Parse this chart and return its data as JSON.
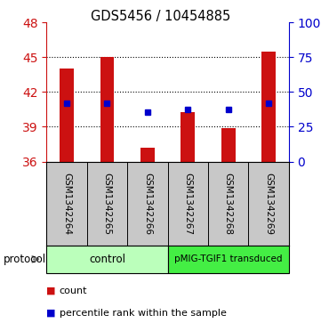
{
  "title": "GDS5456 / 10454885",
  "samples": [
    "GSM1342264",
    "GSM1342265",
    "GSM1342266",
    "GSM1342267",
    "GSM1342268",
    "GSM1342269"
  ],
  "bar_tops": [
    44.0,
    45.0,
    37.2,
    40.3,
    38.9,
    45.5
  ],
  "bar_bottom": 36,
  "blue_y": [
    41.0,
    41.0,
    40.3,
    40.5,
    40.5,
    41.0
  ],
  "ylim_left": [
    36,
    48
  ],
  "yticks_left": [
    36,
    39,
    42,
    45,
    48
  ],
  "ylim_right": [
    0,
    100
  ],
  "yticks_right": [
    0,
    25,
    50,
    75,
    100
  ],
  "yticklabels_right": [
    "0",
    "25",
    "50",
    "75",
    "100%"
  ],
  "bar_color": "#cc1111",
  "blue_color": "#0000cc",
  "left_tick_color": "#cc1111",
  "right_tick_color": "#0000cc",
  "group_labels": [
    "control",
    "pMIG-TGIF1 transduced"
  ],
  "group_color_light": "#bbffbb",
  "group_color_dark": "#44ee44",
  "protocol_label": "protocol",
  "background_color": "#ffffff",
  "label_area_color": "#c8c8c8",
  "figsize": [
    3.61,
    3.63
  ],
  "dpi": 100
}
